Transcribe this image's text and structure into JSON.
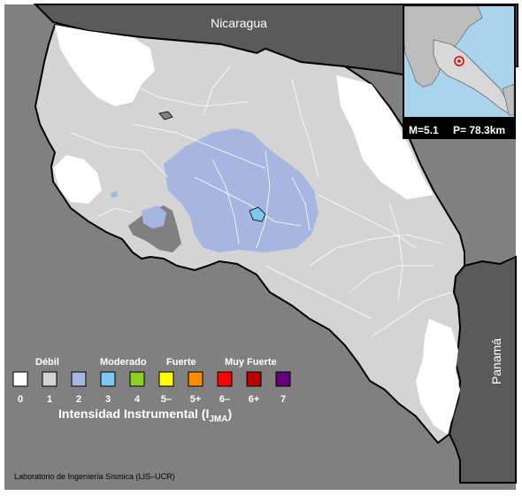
{
  "map": {
    "neighbors": {
      "north": "Nicaragua",
      "southeast": "Panamá"
    },
    "colors": {
      "sea": "#808080",
      "neighbor_land": "#5a5a5a",
      "intensity_1": "#d4d4d4",
      "intensity_0": "#ffffff",
      "intensity_2": "#a6b6e0",
      "borders": "#ffffff"
    }
  },
  "inset": {
    "magnitude": "M=5.1",
    "depth": "P= 78.3km",
    "epicenter_icon": "red-star-icon",
    "colors": {
      "sea": "#a9d4ec",
      "land": "#bdbdbd",
      "epicenter": "#e00000"
    }
  },
  "legend": {
    "categories": [
      {
        "label": "Débil"
      },
      {
        "label": "Moderado"
      },
      {
        "label": "Fuerte"
      },
      {
        "label": "Muy Fuerte"
      }
    ],
    "levels": [
      {
        "label": "0",
        "color": "#ffffff"
      },
      {
        "label": "1",
        "color": "#d4d4d4"
      },
      {
        "label": "2",
        "color": "#a6b6e0"
      },
      {
        "label": "3",
        "color": "#7ec8f0"
      },
      {
        "label": "4",
        "color": "#8ccf1e"
      },
      {
        "label": "5–",
        "color": "#ffff00"
      },
      {
        "label": "5+",
        "color": "#ff8c00"
      },
      {
        "label": "6–",
        "color": "#ff0000"
      },
      {
        "label": "6+",
        "color": "#b80000"
      },
      {
        "label": "7",
        "color": "#640078"
      }
    ],
    "title": "Intensidad Instrumental (I",
    "title_sub": "JMA",
    "title_close": ")"
  },
  "credit": "Laboratorio de Ingeniería Sísmica (LIS–UCR)"
}
